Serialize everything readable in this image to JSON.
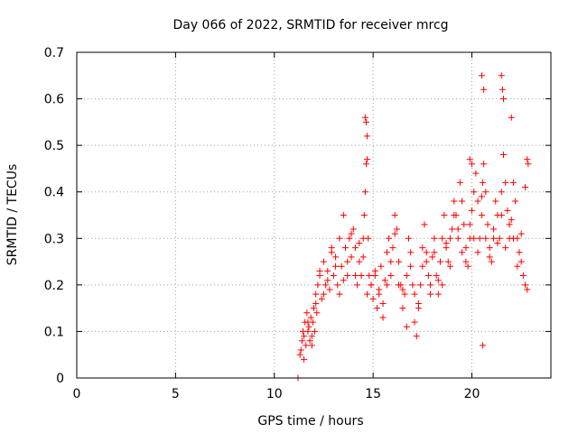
{
  "chart_data": {
    "type": "scatter",
    "title": "Day 066 of 2022, SRMTID for receiver mrcg",
    "xlabel": "GPS time / hours",
    "ylabel": "SRMTID / TECUs",
    "xlim": [
      0,
      24
    ],
    "ylim": [
      0,
      0.7
    ],
    "xticks": [
      0,
      5,
      10,
      15,
      20
    ],
    "xtick_labels": [
      "0",
      "5",
      "10",
      "15",
      "20"
    ],
    "yticks": [
      0,
      0.1,
      0.2,
      0.3,
      0.4,
      0.5,
      0.6,
      0.7
    ],
    "ytick_labels": [
      "0",
      "0.1",
      "0.2",
      "0.3",
      "0.4",
      "0.5",
      "0.6",
      "0.7"
    ],
    "grid": true,
    "marker": "+",
    "color": "#ff0000",
    "series": [
      {
        "name": "SRMTID",
        "x": [
          11.2,
          11.3,
          11.35,
          11.4,
          11.45,
          11.5,
          11.55,
          11.6,
          11.65,
          11.7,
          11.75,
          11.8,
          11.85,
          11.9,
          11.95,
          12.0,
          12.05,
          12.1,
          12.15,
          12.2,
          12.3,
          12.4,
          12.5,
          12.6,
          12.7,
          12.8,
          12.9,
          13.0,
          13.1,
          13.2,
          13.3,
          13.4,
          13.5,
          13.6,
          13.7,
          13.8,
          13.9,
          14.0,
          14.1,
          14.2,
          14.3,
          14.4,
          14.5,
          14.55,
          14.6,
          14.65,
          14.7,
          14.75,
          14.8,
          14.9,
          15.0,
          15.1,
          15.2,
          15.3,
          15.4,
          15.5,
          15.6,
          15.7,
          15.8,
          15.9,
          16.0,
          16.1,
          16.2,
          16.3,
          16.4,
          16.5,
          16.6,
          16.7,
          16.8,
          16.9,
          17.0,
          17.1,
          17.2,
          17.3,
          17.4,
          17.5,
          17.6,
          17.7,
          17.8,
          17.9,
          18.0,
          18.1,
          18.2,
          18.3,
          18.4,
          18.5,
          18.6,
          18.7,
          18.8,
          18.9,
          19.0,
          19.1,
          19.2,
          19.3,
          19.4,
          19.5,
          19.6,
          19.7,
          19.8,
          19.9,
          20.0,
          20.1,
          20.2,
          20.3,
          20.4,
          20.5,
          20.55,
          20.6,
          20.7,
          20.8,
          20.9,
          21.0,
          21.1,
          21.2,
          21.3,
          21.4,
          21.5,
          21.6,
          21.7,
          21.8,
          21.9,
          22.0,
          22.1,
          22.2,
          22.3,
          22.4,
          22.5,
          22.6,
          22.7,
          22.8,
          11.5,
          11.7,
          11.9,
          12.1,
          12.3,
          12.5,
          12.7,
          12.9,
          13.1,
          13.3,
          13.5,
          13.7,
          13.9,
          14.1,
          14.3,
          14.5,
          14.7,
          14.9,
          15.1,
          15.3,
          15.5,
          15.7,
          15.9,
          16.1,
          16.3,
          16.5,
          16.7,
          16.9,
          17.1,
          17.3,
          17.5,
          17.7,
          17.9,
          18.1,
          18.3,
          18.5,
          18.7,
          18.9,
          19.1,
          19.3,
          19.5,
          19.7,
          19.9,
          20.1,
          20.3,
          20.5,
          20.7,
          20.9,
          21.1,
          21.3,
          21.5,
          21.7,
          21.9,
          22.1,
          22.3,
          22.5,
          22.7,
          14.6,
          14.65,
          14.7,
          20.5,
          20.6,
          21.5,
          21.55,
          21.6,
          20.55,
          19.9,
          20.0,
          22.0,
          22.8,
          22.85
        ],
        "y": [
          0.0,
          0.05,
          0.06,
          0.08,
          0.1,
          0.09,
          0.12,
          0.07,
          0.14,
          0.1,
          0.11,
          0.08,
          0.13,
          0.09,
          0.12,
          0.15,
          0.1,
          0.18,
          0.14,
          0.2,
          0.22,
          0.17,
          0.25,
          0.2,
          0.23,
          0.19,
          0.28,
          0.22,
          0.26,
          0.2,
          0.3,
          0.24,
          0.35,
          0.28,
          0.22,
          0.3,
          0.26,
          0.32,
          0.28,
          0.2,
          0.25,
          0.22,
          0.3,
          0.35,
          0.4,
          0.46,
          0.52,
          0.3,
          0.22,
          0.2,
          0.17,
          0.22,
          0.15,
          0.19,
          0.24,
          0.16,
          0.21,
          0.27,
          0.3,
          0.22,
          0.28,
          0.35,
          0.32,
          0.25,
          0.2,
          0.15,
          0.18,
          0.22,
          0.3,
          0.27,
          0.2,
          0.12,
          0.09,
          0.15,
          0.2,
          0.28,
          0.33,
          0.25,
          0.22,
          0.18,
          0.26,
          0.3,
          0.22,
          0.18,
          0.25,
          0.3,
          0.35,
          0.28,
          0.25,
          0.3,
          0.32,
          0.38,
          0.35,
          0.3,
          0.42,
          0.38,
          0.33,
          0.28,
          0.24,
          0.3,
          0.36,
          0.4,
          0.44,
          0.38,
          0.3,
          0.35,
          0.42,
          0.46,
          0.4,
          0.33,
          0.28,
          0.25,
          0.3,
          0.38,
          0.35,
          0.3,
          0.4,
          0.48,
          0.42,
          0.36,
          0.3,
          0.34,
          0.42,
          0.38,
          0.3,
          0.27,
          0.25,
          0.22,
          0.2,
          0.19,
          0.04,
          0.12,
          0.07,
          0.16,
          0.23,
          0.18,
          0.21,
          0.27,
          0.24,
          0.18,
          0.21,
          0.25,
          0.31,
          0.22,
          0.29,
          0.26,
          0.18,
          0.2,
          0.23,
          0.18,
          0.13,
          0.2,
          0.25,
          0.31,
          0.2,
          0.19,
          0.11,
          0.24,
          0.18,
          0.16,
          0.24,
          0.27,
          0.2,
          0.27,
          0.21,
          0.2,
          0.29,
          0.24,
          0.35,
          0.32,
          0.27,
          0.25,
          0.33,
          0.3,
          0.27,
          0.39,
          0.3,
          0.26,
          0.32,
          0.29,
          0.35,
          0.28,
          0.33,
          0.3,
          0.24,
          0.31,
          0.41,
          0.56,
          0.55,
          0.47,
          0.65,
          0.62,
          0.65,
          0.62,
          0.6,
          0.07,
          0.47,
          0.46,
          0.56,
          0.47,
          0.46
        ]
      }
    ]
  }
}
